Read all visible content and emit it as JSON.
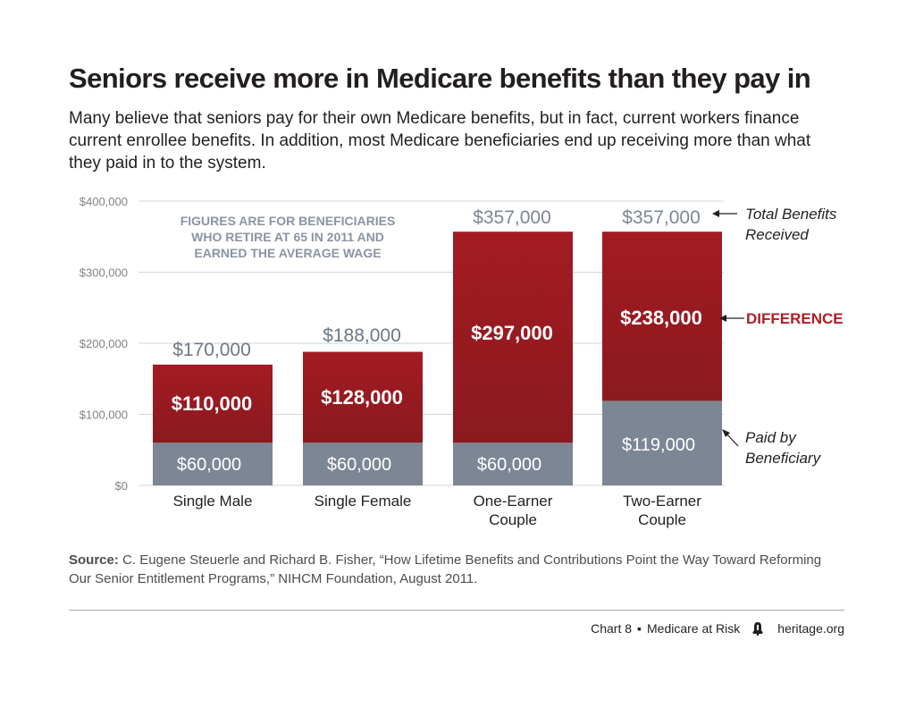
{
  "header": {
    "title": "Seniors receive more in Medicare benefits than they pay in",
    "subtitle": "Many believe that seniors pay for their own Medicare benefits, but in fact, current workers finance current enrollee benefits. In addition, most Medicare beneficiaries end up receiving more than what they paid in to the system."
  },
  "chart_data": {
    "type": "bar",
    "stacked": true,
    "title": "Seniors receive more in Medicare benefits than they pay in",
    "ylim": [
      0,
      400000
    ],
    "yticks": [
      0,
      100000,
      200000,
      300000,
      400000
    ],
    "ytick_labels": [
      "$0",
      "$100,000",
      "$200,000",
      "$300,000",
      "$400,000"
    ],
    "grid": true,
    "categories": [
      [
        "Single Male"
      ],
      [
        "Single Female"
      ],
      [
        "One-Earner",
        "Couple"
      ],
      [
        "Two-Earner",
        "Couple"
      ]
    ],
    "series": [
      {
        "name": "Paid by Beneficiary",
        "color": "#7d8694",
        "values": [
          60000,
          60000,
          60000,
          119000
        ],
        "labels": [
          "$60,000",
          "$60,000",
          "$60,000",
          "$119,000"
        ]
      },
      {
        "name": "Difference",
        "color": "#9c1c22",
        "values": [
          110000,
          128000,
          297000,
          238000
        ],
        "labels": [
          "$110,000",
          "$128,000",
          "$297,000",
          "$238,000"
        ]
      }
    ],
    "totals": [
      170000,
      188000,
      357000,
      357000
    ],
    "total_labels": [
      "$170,000",
      "$188,000",
      "$357,000",
      "$357,000"
    ],
    "note": [
      "FIGURES ARE FOR BENEFICIARIES",
      "WHO RETIRE AT 65 IN 2011 AND",
      "EARNED THE AVERAGE WAGE"
    ],
    "legend": {
      "total": [
        "Total Benefits",
        "Received"
      ],
      "difference": [
        "DIFFERENCE"
      ],
      "paid": [
        "Paid by",
        "Beneficiary"
      ]
    },
    "colors": {
      "paid": "#7d8694",
      "difference_top": "#a31b22",
      "difference_bottom": "#8a1a1f",
      "difference_text": "#b01e24",
      "note": "#8a94a3",
      "axis_text": "#808285",
      "grid": "#d1d3d4"
    }
  },
  "source": {
    "label": "Source:",
    "text": "C. Eugene Steuerle and Richard B. Fisher, “How Lifetime Benefits and Contributions Point the Way Toward Reforming Our Senior Entitlement Programs,” NIHCM Foundation, August 2011."
  },
  "footer": {
    "chart_label": "Chart 8",
    "bullet": "▪",
    "series_label": "Medicare at Risk",
    "site": "heritage.org"
  }
}
